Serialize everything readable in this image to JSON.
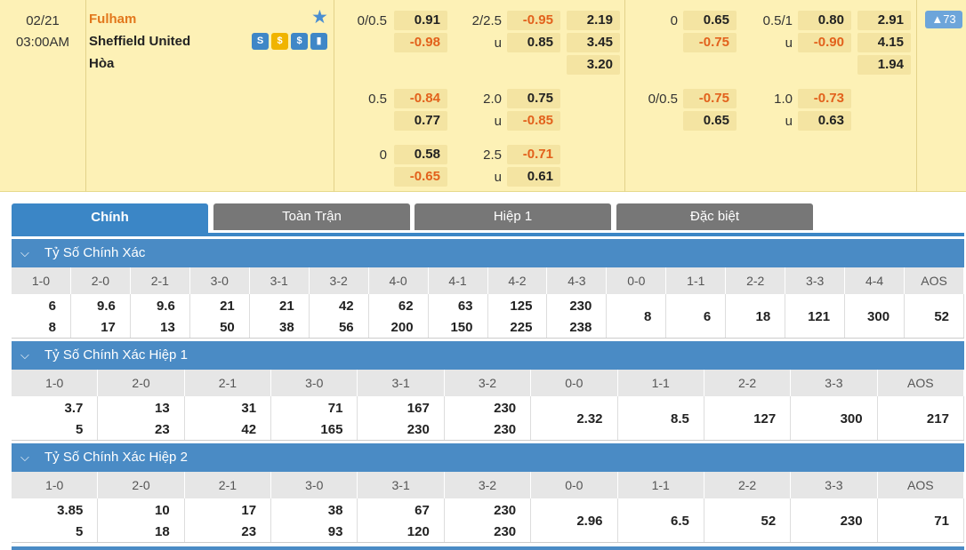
{
  "match": {
    "date": "02/21",
    "time": "03:00AM",
    "home": "Fulham",
    "away": "Sheffield United",
    "draw": "Hòa",
    "badge": "▲73",
    "icons": [
      "S",
      "$",
      "$",
      "chart"
    ],
    "handicap_main": {
      "line": "0/0.5",
      "home": "0.91",
      "away": "-0.98"
    },
    "ou_main": {
      "line": "2/2.5",
      "over": "-0.95",
      "under_label": "u",
      "under": "0.85"
    },
    "x12_main": {
      "home": "2.19",
      "away": "3.45",
      "draw": "3.20"
    },
    "handicap_alt1": {
      "line": "0.5",
      "home": "-0.84",
      "away": "0.77"
    },
    "ou_alt1": {
      "line": "2.0",
      "over": "0.75",
      "under_label": "u",
      "under": "-0.85"
    },
    "handicap_alt2": {
      "line": "0",
      "home": "0.58",
      "away": "-0.65"
    },
    "ou_alt2": {
      "line": "2.5",
      "over": "-0.71",
      "under_label": "u",
      "under": "0.61"
    },
    "h1_handicap_main": {
      "line": "0",
      "home": "0.65",
      "away": "-0.75"
    },
    "h1_ou_main": {
      "line": "0.5/1",
      "over": "0.80",
      "under_label": "u",
      "under": "-0.90"
    },
    "h1_x12": {
      "home": "2.91",
      "away": "4.15",
      "draw": "1.94"
    },
    "h1_handicap_alt": {
      "line": "0/0.5",
      "home": "-0.75",
      "away": "0.65"
    },
    "h1_ou_alt": {
      "line": "1.0",
      "over": "-0.73",
      "under_label": "u",
      "under": "0.63"
    }
  },
  "tabs": [
    "Chính",
    "Toàn Trận",
    "Hiệp 1",
    "Đặc biệt"
  ],
  "sections": [
    {
      "title": "Tỷ Số Chính Xác",
      "headers": [
        "1-0",
        "2-0",
        "2-1",
        "3-0",
        "3-1",
        "3-2",
        "4-0",
        "4-1",
        "4-2",
        "4-3",
        "0-0",
        "1-1",
        "2-2",
        "3-3",
        "4-4",
        "AOS"
      ],
      "top": [
        "6",
        "9.6",
        "9.6",
        "21",
        "21",
        "42",
        "62",
        "63",
        "125",
        "230"
      ],
      "bottom": [
        "8",
        "17",
        "13",
        "50",
        "38",
        "56",
        "200",
        "150",
        "225",
        "238"
      ],
      "singles": [
        "8",
        "6",
        "18",
        "121",
        "300",
        "52"
      ]
    },
    {
      "title": "Tỷ Số Chính Xác Hiệp 1",
      "headers": [
        "1-0",
        "2-0",
        "2-1",
        "3-0",
        "3-1",
        "3-2",
        "0-0",
        "1-1",
        "2-2",
        "3-3",
        "AOS"
      ],
      "top": [
        "3.7",
        "13",
        "31",
        "71",
        "167",
        "230"
      ],
      "bottom": [
        "5",
        "23",
        "42",
        "165",
        "230",
        "230"
      ],
      "singles": [
        "2.32",
        "8.5",
        "127",
        "300",
        "217"
      ]
    },
    {
      "title": "Tỷ Số Chính Xác Hiệp 2",
      "headers": [
        "1-0",
        "2-0",
        "2-1",
        "3-0",
        "3-1",
        "3-2",
        "0-0",
        "1-1",
        "2-2",
        "3-3",
        "AOS"
      ],
      "top": [
        "3.85",
        "10",
        "17",
        "38",
        "67",
        "230"
      ],
      "bottom": [
        "5",
        "18",
        "23",
        "93",
        "120",
        "230"
      ],
      "singles": [
        "2.96",
        "6.5",
        "52",
        "230",
        "71"
      ]
    }
  ],
  "colors": {
    "accent": "#3b86c6",
    "negative": "#e2611c",
    "home_team": "#e2771c",
    "header_bg": "#fdf1b6"
  }
}
